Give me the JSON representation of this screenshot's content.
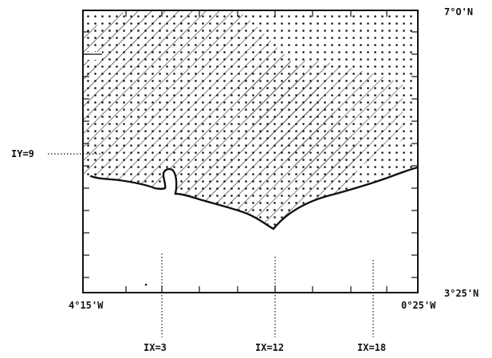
{
  "labels": {
    "lat_north": "7°O'N",
    "lat_south": "3°25'N",
    "lon_west": "4°15'W",
    "lon_east": "0°25'W",
    "iy_marker": "IY=9",
    "ix_markers": [
      "IX=3",
      "IX=12",
      "IX=18"
    ]
  },
  "colors": {
    "ink": "#111111",
    "background": "#ffffff"
  },
  "legend_patterns": [
    "dotted",
    "diagonal-hatch",
    "dotted-hatch-overlap"
  ]
}
